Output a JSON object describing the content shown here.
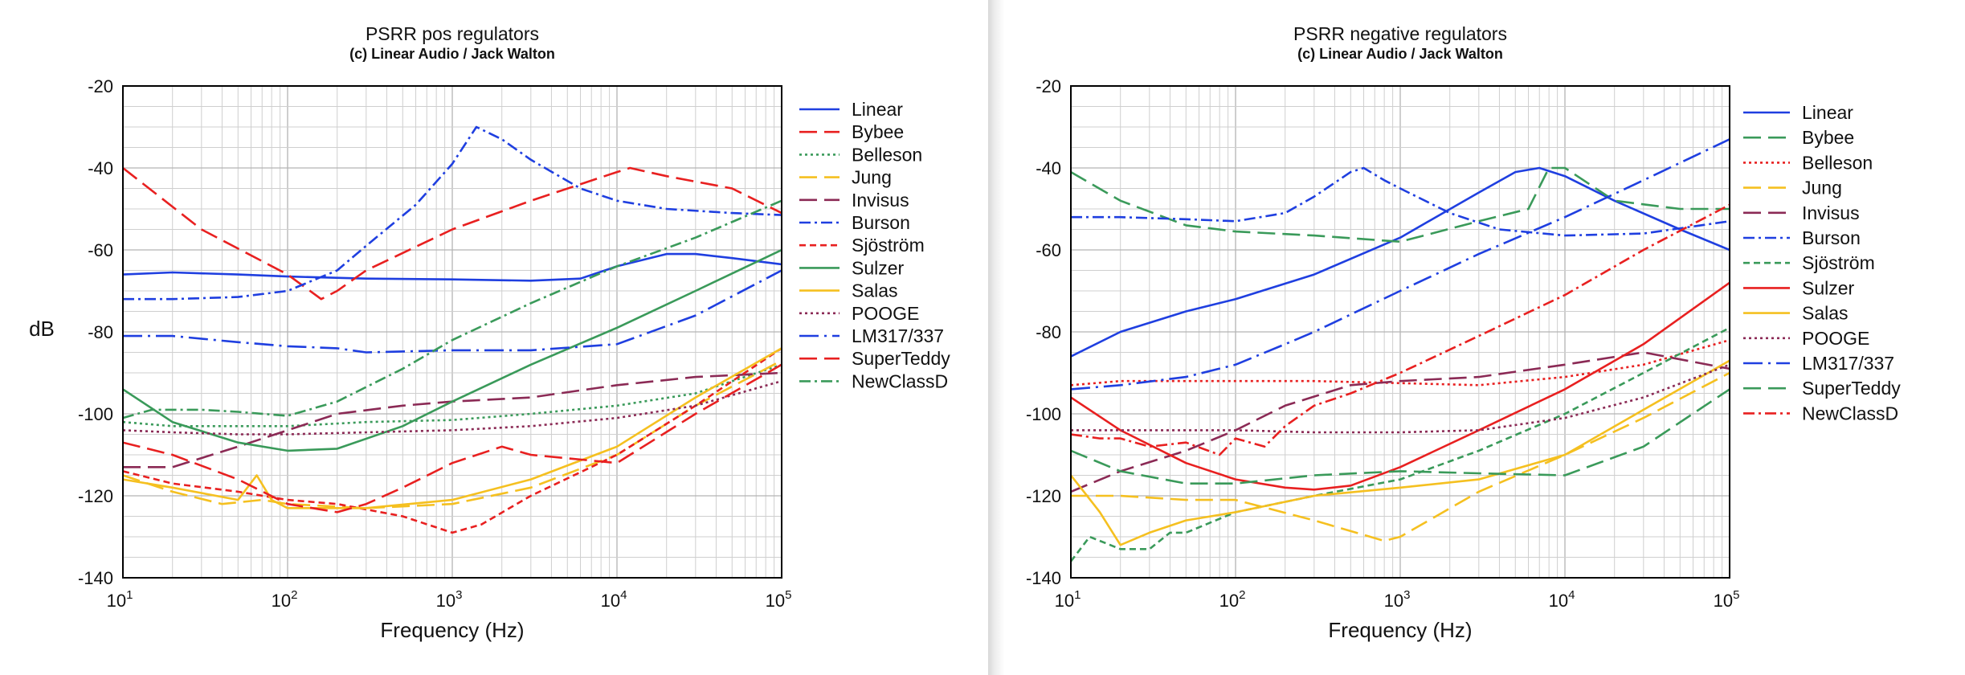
{
  "chart_data": [
    {
      "type": "line",
      "title": "PSRR pos regulators",
      "subtitle": "(c) Linear Audio / Jack Walton",
      "xlabel": "Frequency (Hz)",
      "ylabel": "dB",
      "xscale": "log",
      "xlim": [
        10,
        100000
      ],
      "ylim": [
        -140,
        -20
      ],
      "xticks": [
        {
          "base": "10",
          "exp": "1"
        },
        {
          "base": "10",
          "exp": "2"
        },
        {
          "base": "10",
          "exp": "3"
        },
        {
          "base": "10",
          "exp": "4"
        },
        {
          "base": "10",
          "exp": "5"
        }
      ],
      "yticks": [
        "-20",
        "-40",
        "-60",
        "-80",
        "-100",
        "-120",
        "-140"
      ],
      "grid": true,
      "legend": "right",
      "series": [
        {
          "name": "Linear",
          "color": "#1f3fe0",
          "dash": "solid",
          "x": [
            10,
            20,
            50,
            100,
            300,
            1000,
            3000,
            6000,
            10000,
            20000,
            30000,
            50000,
            100000
          ],
          "y": [
            -66,
            -65.5,
            -66,
            -66.5,
            -67,
            -67.2,
            -67.5,
            -67,
            -64,
            -61,
            -61,
            -62,
            -63.5
          ]
        },
        {
          "name": "Bybee",
          "color": "#e82020",
          "dash": "longdash",
          "x": [
            10,
            30,
            100,
            160,
            200,
            300,
            1000,
            3000,
            10000,
            12000,
            20000,
            50000,
            100000
          ],
          "y": [
            -40,
            -55,
            -66,
            -72,
            -70,
            -65,
            -55,
            -48,
            -41,
            -40,
            -42,
            -45,
            -51
          ]
        },
        {
          "name": "Belleson",
          "color": "#3a9a5a",
          "dash": "dot",
          "x": [
            10,
            20,
            50,
            100,
            300,
            1000,
            3000,
            10000,
            30000,
            100000
          ],
          "y": [
            -102,
            -103,
            -103,
            -103,
            -102,
            -101.5,
            -100,
            -98,
            -95,
            -88
          ]
        },
        {
          "name": "Jung",
          "color": "#f5c020",
          "dash": "longdash",
          "x": [
            10,
            20,
            40,
            70,
            100,
            300,
            1000,
            3000,
            10000,
            30000,
            100000
          ],
          "y": [
            -115,
            -119,
            -122,
            -121,
            -122,
            -123,
            -122,
            -118,
            -110,
            -98,
            -87
          ]
        },
        {
          "name": "Invisus",
          "color": "#8b2a55",
          "dash": "longdash",
          "x": [
            10,
            20,
            50,
            100,
            200,
            500,
            1000,
            3000,
            10000,
            30000,
            100000
          ],
          "y": [
            -113,
            -113,
            -108,
            -104,
            -100,
            -98,
            -97,
            -96,
            -93,
            -91,
            -90
          ]
        },
        {
          "name": "Burson",
          "color": "#1f3fe0",
          "dash": "dashdot",
          "x": [
            10,
            20,
            50,
            100,
            200,
            300,
            600,
            1000,
            1400,
            2000,
            3000,
            6000,
            10000,
            20000,
            50000,
            100000
          ],
          "y": [
            -72,
            -72,
            -71.5,
            -70,
            -65,
            -59,
            -49,
            -39,
            -30,
            -33,
            -38,
            -45,
            -48,
            -50,
            -51,
            -51.5
          ]
        },
        {
          "name": "Sjöström",
          "color": "#e82020",
          "dash": "dash",
          "x": [
            10,
            20,
            50,
            100,
            200,
            500,
            1000,
            1500,
            3000,
            10000,
            30000,
            100000
          ],
          "y": [
            -114,
            -117,
            -119,
            -121,
            -122,
            -125,
            -129,
            -127,
            -120,
            -110,
            -98,
            -84
          ]
        },
        {
          "name": "Sulzer",
          "color": "#3a9a5a",
          "dash": "solid",
          "x": [
            10,
            20,
            50,
            100,
            200,
            500,
            1000,
            3000,
            10000,
            30000,
            100000
          ],
          "y": [
            -94,
            -102,
            -107,
            -109,
            -108.5,
            -103,
            -97,
            -88,
            -79,
            -70,
            -60
          ]
        },
        {
          "name": "Salas",
          "color": "#f5c020",
          "dash": "solid",
          "x": [
            10,
            20,
            50,
            65,
            80,
            100,
            300,
            1000,
            3000,
            10000,
            30000,
            100000
          ],
          "y": [
            -116,
            -118,
            -121,
            -115,
            -121,
            -123,
            -123,
            -121,
            -116,
            -108,
            -96,
            -84
          ]
        },
        {
          "name": "POOGE",
          "color": "#8b2a55",
          "dash": "dot",
          "x": [
            10,
            20,
            50,
            100,
            300,
            1000,
            3000,
            10000,
            30000,
            100000
          ],
          "y": [
            -104,
            -104.5,
            -105,
            -105,
            -104.5,
            -104,
            -103,
            -101,
            -98,
            -92
          ]
        },
        {
          "name": "LM317/337",
          "color": "#1f3fe0",
          "dash": "longdashdot",
          "x": [
            10,
            20,
            50,
            100,
            200,
            300,
            1000,
            3000,
            10000,
            30000,
            100000
          ],
          "y": [
            -81,
            -81,
            -82.5,
            -83.5,
            -84,
            -85,
            -84.5,
            -84.5,
            -83,
            -76,
            -65
          ]
        },
        {
          "name": "SuperTeddy",
          "color": "#e82020",
          "dash": "longdash",
          "x": [
            10,
            20,
            50,
            100,
            200,
            300,
            500,
            1000,
            2000,
            3000,
            10000,
            30000,
            100000
          ],
          "y": [
            -107,
            -110,
            -116,
            -122,
            -124,
            -122,
            -118,
            -112,
            -108,
            -110,
            -112,
            -100,
            -88
          ]
        },
        {
          "name": "NewClassD",
          "color": "#3a9a5a",
          "dash": "dashdot",
          "x": [
            10,
            15,
            30,
            50,
            100,
            200,
            500,
            1000,
            3000,
            10000,
            30000,
            100000
          ],
          "y": [
            -101,
            -99,
            -99,
            -99.5,
            -100.5,
            -97,
            -89,
            -82,
            -73,
            -64,
            -57,
            -48
          ]
        }
      ]
    },
    {
      "type": "line",
      "title": "PSRR negative regulators",
      "subtitle": "(c) Linear Audio / Jack Walton",
      "xlabel": "Frequency (Hz)",
      "ylabel": "",
      "xscale": "log",
      "xlim": [
        10,
        100000
      ],
      "ylim": [
        -140,
        -20
      ],
      "xticks": [
        {
          "base": "10",
          "exp": "1"
        },
        {
          "base": "10",
          "exp": "2"
        },
        {
          "base": "10",
          "exp": "3"
        },
        {
          "base": "10",
          "exp": "4"
        },
        {
          "base": "10",
          "exp": "5"
        }
      ],
      "yticks": [
        "-20",
        "-40",
        "-60",
        "-80",
        "-100",
        "-120",
        "-140"
      ],
      "grid": true,
      "legend": "right",
      "series": [
        {
          "name": "Linear",
          "color": "#1f3fe0",
          "dash": "solid",
          "x": [
            10,
            20,
            50,
            100,
            300,
            1000,
            3000,
            5000,
            7000,
            10000,
            20000,
            50000,
            100000
          ],
          "y": [
            -86,
            -80,
            -75,
            -72,
            -66,
            -57,
            -46,
            -41,
            -40,
            -42,
            -48,
            -55,
            -60
          ]
        },
        {
          "name": "Bybee",
          "color": "#3a9a5a",
          "dash": "longdash",
          "x": [
            10,
            20,
            50,
            100,
            300,
            1000,
            3000,
            6000,
            8000,
            10000,
            20000,
            50000,
            100000
          ],
          "y": [
            -41,
            -48,
            -54,
            -55.5,
            -56.5,
            -58,
            -53,
            -50,
            -40,
            -40,
            -48,
            -50,
            -50
          ]
        },
        {
          "name": "Belleson",
          "color": "#e82020",
          "dash": "dot",
          "x": [
            10,
            20,
            50,
            100,
            300,
            1000,
            3000,
            10000,
            30000,
            100000
          ],
          "y": [
            -93,
            -92,
            -92,
            -92,
            -92,
            -92.5,
            -93,
            -91,
            -88,
            -82
          ]
        },
        {
          "name": "Jung",
          "color": "#f5c020",
          "dash": "longdash",
          "x": [
            10,
            20,
            50,
            100,
            300,
            800,
            1000,
            3000,
            10000,
            30000,
            100000
          ],
          "y": [
            -120,
            -120,
            -121,
            -121,
            -126,
            -131,
            -130,
            -119,
            -110,
            -101,
            -90
          ]
        },
        {
          "name": "Invisus",
          "color": "#8b2a55",
          "dash": "longdash",
          "x": [
            10,
            20,
            50,
            100,
            200,
            500,
            1000,
            3000,
            10000,
            30000,
            100000
          ],
          "y": [
            -119,
            -114,
            -109,
            -104,
            -98,
            -93,
            -92,
            -91,
            -88,
            -85,
            -89
          ]
        },
        {
          "name": "Burson",
          "color": "#1f3fe0",
          "dash": "dashdot",
          "x": [
            10,
            20,
            50,
            100,
            200,
            300,
            500,
            600,
            800,
            1000,
            2000,
            4000,
            10000,
            30000,
            100000
          ],
          "y": [
            -52,
            -52,
            -52.5,
            -53,
            -51,
            -47,
            -41,
            -40,
            -43,
            -45,
            -51,
            -55,
            -56.5,
            -56,
            -53
          ]
        },
        {
          "name": "Sjöström",
          "color": "#3a9a5a",
          "dash": "dash",
          "x": [
            10,
            13,
            20,
            30,
            40,
            50,
            100,
            300,
            1000,
            3000,
            10000,
            30000,
            100000
          ],
          "y": [
            -136,
            -130,
            -133,
            -133,
            -129,
            -129,
            -124,
            -120,
            -116,
            -109,
            -100,
            -90,
            -79
          ]
        },
        {
          "name": "Sulzer",
          "color": "#e82020",
          "dash": "solid",
          "x": [
            10,
            20,
            50,
            100,
            200,
            300,
            500,
            1000,
            3000,
            10000,
            30000,
            100000
          ],
          "y": [
            -96,
            -104,
            -112,
            -116,
            -118,
            -118.5,
            -117.5,
            -113,
            -104,
            -94,
            -83,
            -68
          ]
        },
        {
          "name": "Salas",
          "color": "#f5c020",
          "dash": "solid",
          "x": [
            10,
            12,
            15,
            20,
            30,
            50,
            100,
            300,
            1000,
            3000,
            10000,
            30000,
            100000
          ],
          "y": [
            -115,
            -119,
            -124,
            -132,
            -129,
            -126,
            -124,
            -120,
            -118,
            -116,
            -110,
            -99,
            -87
          ]
        },
        {
          "name": "POOGE",
          "color": "#8b2a55",
          "dash": "dot",
          "x": [
            10,
            20,
            50,
            100,
            300,
            1000,
            3000,
            10000,
            30000,
            100000
          ],
          "y": [
            -104,
            -104,
            -104,
            -104,
            -104.5,
            -104.5,
            -104,
            -101,
            -96,
            -88
          ]
        },
        {
          "name": "LM317/337",
          "color": "#1f3fe0",
          "dash": "longdashdot",
          "x": [
            10,
            20,
            50,
            100,
            200,
            300,
            1000,
            3000,
            10000,
            30000,
            100000
          ],
          "y": [
            -94,
            -93,
            -91,
            -88,
            -83,
            -80,
            -70,
            -61,
            -52,
            -43,
            -33
          ]
        },
        {
          "name": "SuperTeddy",
          "color": "#3a9a5a",
          "dash": "longdash",
          "x": [
            10,
            20,
            50,
            100,
            300,
            1000,
            3000,
            10000,
            30000,
            100000
          ],
          "y": [
            -109,
            -114,
            -117,
            -117,
            -115,
            -114,
            -114.5,
            -115,
            -108,
            -94
          ]
        },
        {
          "name": "NewClassD",
          "color": "#e82020",
          "dash": "dashdot",
          "x": [
            10,
            15,
            20,
            30,
            50,
            80,
            100,
            150,
            200,
            300,
            500,
            1000,
            3000,
            10000,
            30000,
            100000
          ],
          "y": [
            -105,
            -106,
            -106,
            -108,
            -107,
            -110,
            -106,
            -108,
            -103,
            -98,
            -95,
            -90,
            -81,
            -71,
            -60,
            -49
          ]
        }
      ]
    }
  ]
}
